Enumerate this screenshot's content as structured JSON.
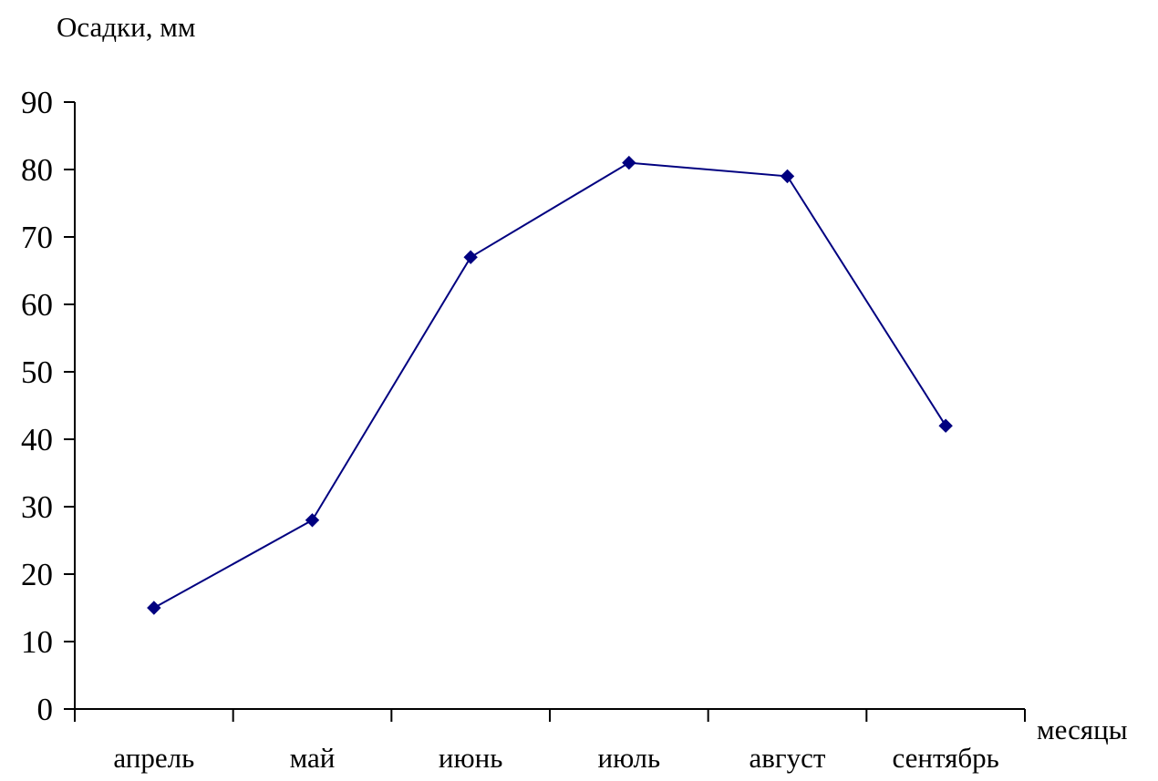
{
  "chart_data": {
    "type": "line",
    "title": "",
    "ylabel": "Осадки, мм",
    "xlabel": "месяцы",
    "categories": [
      "апрель",
      "май",
      "июнь",
      "июль",
      "август",
      "сентябрь"
    ],
    "series": [
      {
        "values": [
          15,
          28,
          67,
          81,
          79,
          42
        ],
        "color": "#000080",
        "marker": "diamond"
      }
    ],
    "ylim": [
      0,
      90
    ],
    "yticks": [
      0,
      10,
      20,
      30,
      40,
      50,
      60,
      70,
      80,
      90
    ],
    "grid": false,
    "legend": "none"
  }
}
